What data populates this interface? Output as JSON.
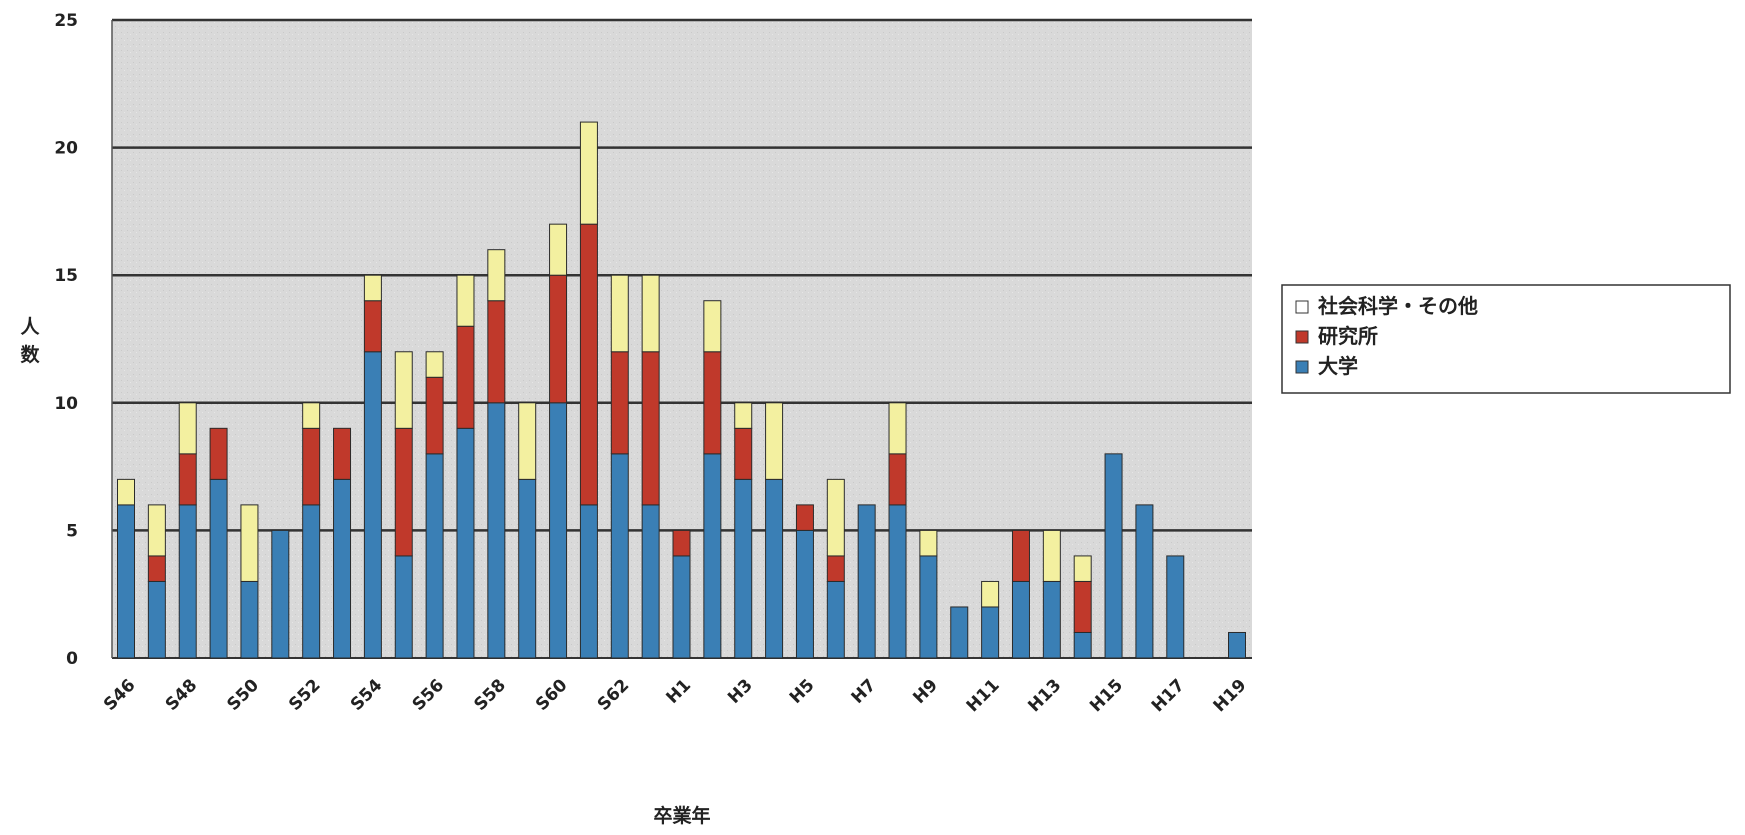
{
  "chart_data": {
    "type": "bar",
    "stacked": true,
    "title": "",
    "xlabel": "卒業年",
    "ylabel": "人数",
    "ylim": [
      0,
      25
    ],
    "yticks": [
      0,
      5,
      10,
      15,
      20,
      25
    ],
    "grid": true,
    "legend_position": "right",
    "categories": [
      "S46",
      "S47",
      "S48",
      "S49",
      "S50",
      "S51",
      "S52",
      "S53",
      "S54",
      "S55",
      "S56",
      "S57",
      "S58",
      "S59",
      "S60",
      "S61",
      "S62",
      "S63",
      "H1",
      "H2",
      "H3",
      "H4",
      "H5",
      "H6",
      "H7",
      "H8",
      "H9",
      "H10",
      "H11",
      "H12",
      "H13",
      "H14",
      "H15",
      "H16",
      "H17",
      "H18",
      "H19"
    ],
    "tick_labels": [
      "S46",
      "",
      "S48",
      "",
      "S50",
      "",
      "S52",
      "",
      "S54",
      "",
      "S56",
      "",
      "S58",
      "",
      "S60",
      "",
      "S62",
      "",
      "H1",
      "",
      "H3",
      "",
      "H5",
      "",
      "H7",
      "",
      "H9",
      "",
      "H11",
      "",
      "H13",
      "",
      "H15",
      "",
      "H17",
      "",
      "H19"
    ],
    "series": [
      {
        "name": "大学",
        "color": "#3a7fb5",
        "values": [
          6,
          3,
          6,
          7,
          3,
          5,
          6,
          7,
          12,
          4,
          8,
          9,
          10,
          7,
          10,
          6,
          8,
          6,
          4,
          8,
          7,
          7,
          5,
          3,
          6,
          6,
          4,
          2,
          2,
          3,
          3,
          1,
          8,
          6,
          4,
          0,
          1
        ]
      },
      {
        "name": "研究所",
        "color": "#c0392b",
        "values": [
          0,
          1,
          2,
          2,
          0,
          0,
          3,
          2,
          2,
          5,
          3,
          4,
          4,
          0,
          5,
          11,
          4,
          6,
          1,
          4,
          2,
          0,
          1,
          1,
          0,
          2,
          0,
          0,
          0,
          2,
          0,
          2,
          0,
          0,
          0,
          0,
          0
        ]
      },
      {
        "name": "社会科学・その他",
        "color": "#f3f0a0",
        "values": [
          1,
          2,
          2,
          0,
          3,
          0,
          1,
          0,
          1,
          3,
          1,
          2,
          2,
          3,
          2,
          4,
          3,
          3,
          0,
          2,
          1,
          3,
          0,
          3,
          0,
          2,
          1,
          0,
          1,
          0,
          2,
          1,
          0,
          0,
          0,
          0,
          0
        ]
      }
    ],
    "legend_order": [
      "社会科学・その他",
      "研究所",
      "大学"
    ]
  }
}
